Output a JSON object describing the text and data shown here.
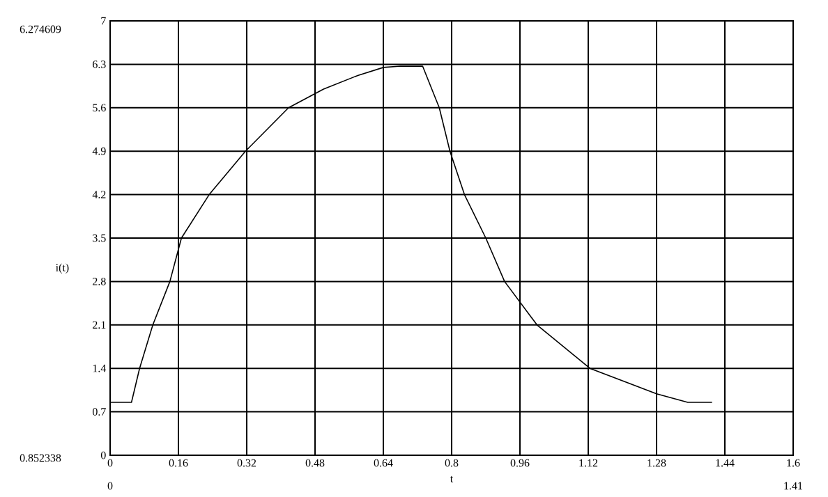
{
  "chart_data": {
    "type": "line",
    "xlabel": "t",
    "ylabel": "i(t)",
    "x": [
      0,
      0.05,
      0.069,
      0.1,
      0.14,
      0.167,
      0.232,
      0.317,
      0.418,
      0.5,
      0.58,
      0.64,
      0.68,
      0.732,
      0.771,
      0.796,
      0.83,
      0.88,
      0.924,
      1.0,
      1.124,
      1.2,
      1.28,
      1.353,
      1.41
    ],
    "values": [
      0.852,
      0.852,
      1.4,
      2.1,
      2.8,
      3.5,
      4.2,
      4.9,
      5.6,
      5.9,
      6.12,
      6.25,
      6.27,
      6.27,
      5.6,
      4.9,
      4.2,
      3.5,
      2.8,
      2.1,
      1.4,
      1.2,
      0.99,
      0.852,
      0.852
    ],
    "color": "#000000",
    "xlim": [
      0,
      1.6
    ],
    "ylim": [
      0,
      7
    ],
    "xticks": [
      0,
      0.16,
      0.32,
      0.48,
      0.64,
      0.8,
      0.96,
      1.12,
      1.28,
      1.44,
      1.6
    ],
    "yticks": [
      0,
      0.7,
      1.4,
      2.1,
      2.8,
      3.5,
      4.2,
      4.9,
      5.6,
      6.3,
      7
    ],
    "grid": true,
    "marker": "none",
    "line_style": "solid",
    "annotations": [
      "6.274609",
      "0.852338",
      "0",
      "1.41"
    ]
  }
}
